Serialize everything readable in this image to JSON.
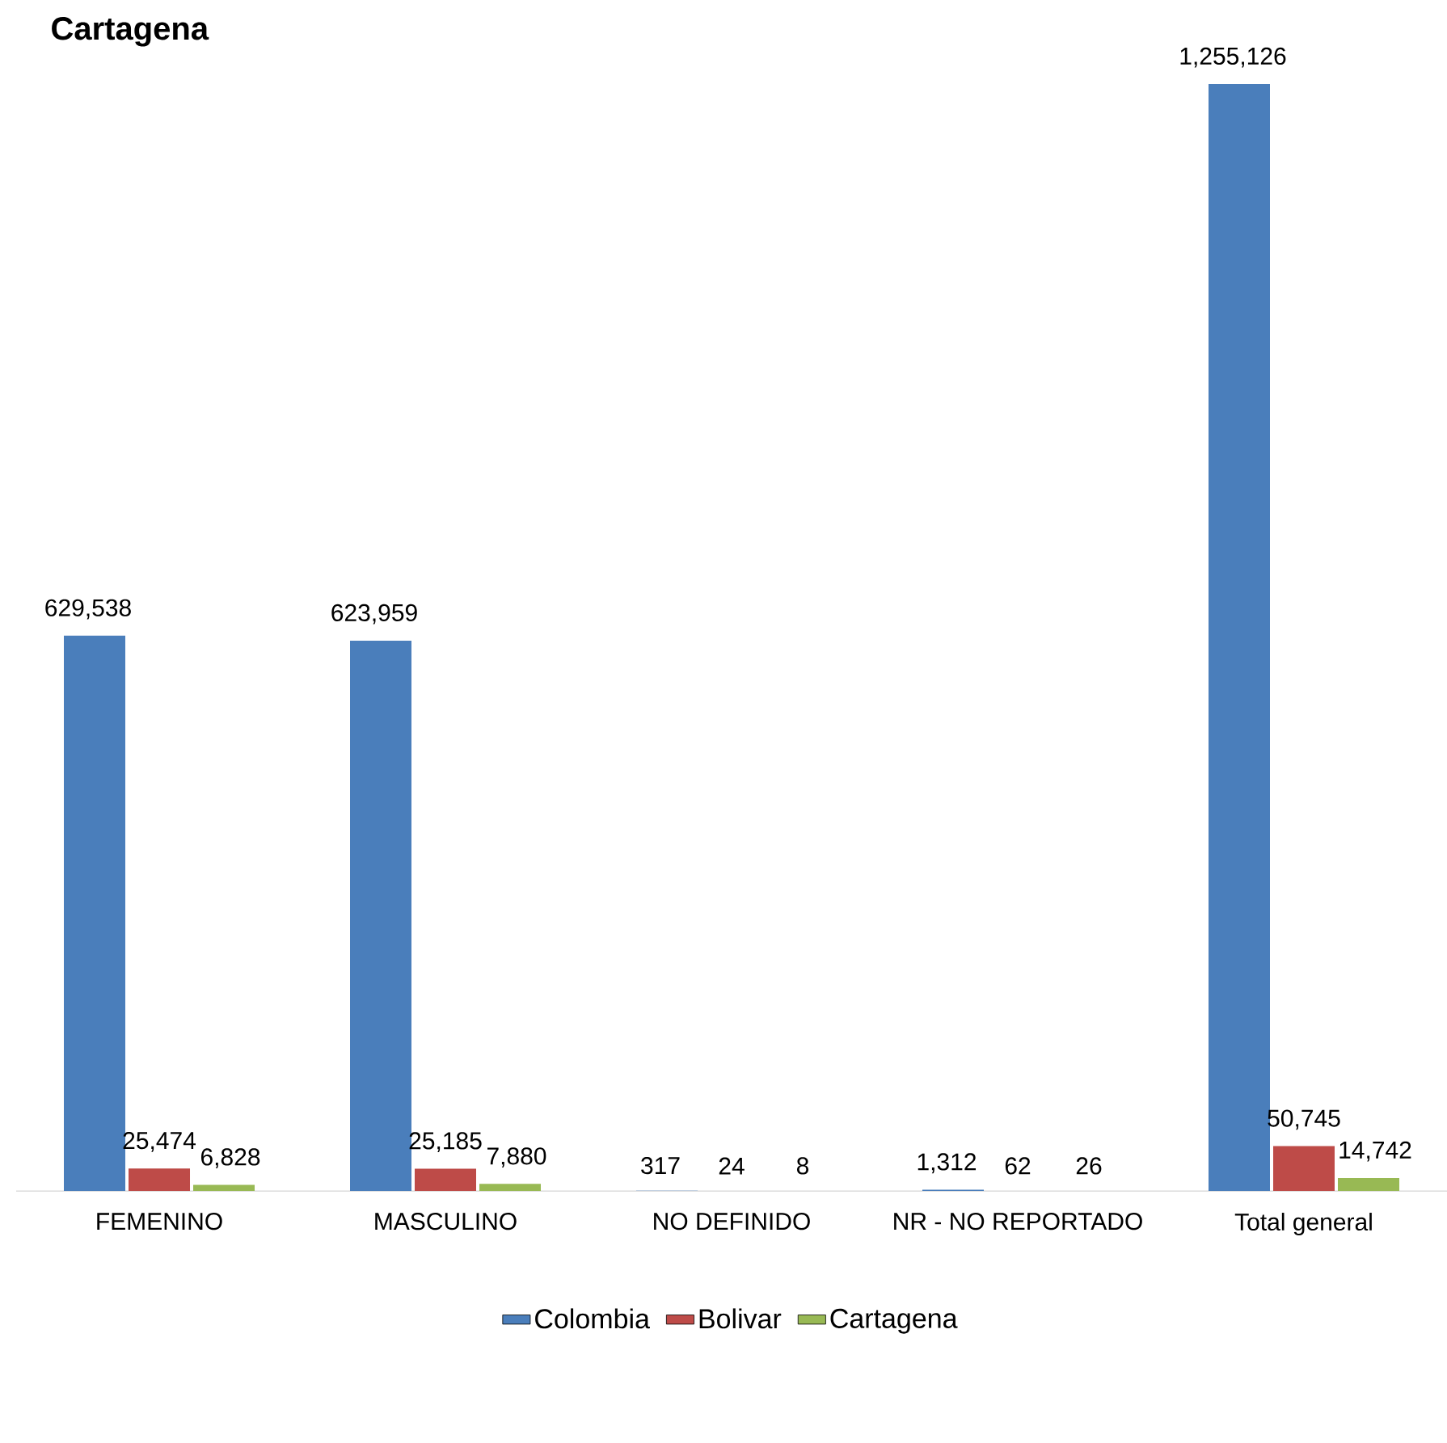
{
  "chart_data": {
    "type": "bar",
    "title": "Cartagena",
    "categories": [
      "FEMENINO",
      "MASCULINO",
      "NO DEFINIDO",
      "NR - NO REPORTADO",
      "Total general"
    ],
    "series": [
      {
        "name": "Colombia",
        "color": "#4a7ebb",
        "values": [
          629538,
          623959,
          317,
          1312,
          1255126
        ],
        "value_labels": [
          "629,538",
          "623,959",
          "317",
          "1,312",
          "1,255,126"
        ]
      },
      {
        "name": "Bolivar",
        "color": "#be4b48",
        "values": [
          25474,
          25185,
          24,
          62,
          50745
        ],
        "value_labels": [
          "25,474",
          "25,185",
          "24",
          "62",
          "50,745"
        ]
      },
      {
        "name": "Cartagena",
        "color": "#98b954",
        "values": [
          6828,
          7880,
          8,
          26,
          14742
        ],
        "value_labels": [
          "6,828",
          "7,880",
          "8",
          "26",
          "14,742"
        ]
      }
    ],
    "legend": "bottom"
  }
}
